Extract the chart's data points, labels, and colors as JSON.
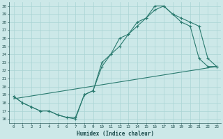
{
  "xlabel": "Humidex (Indice chaleur)",
  "bg_color": "#cce8e8",
  "grid_color": "#aad4d4",
  "line_color": "#2a7a6f",
  "xlim": [
    -0.5,
    23.5
  ],
  "ylim": [
    15.5,
    30.5
  ],
  "xticks": [
    0,
    1,
    2,
    3,
    4,
    5,
    6,
    7,
    8,
    9,
    10,
    11,
    12,
    13,
    14,
    15,
    16,
    17,
    18,
    19,
    20,
    21,
    22,
    23
  ],
  "yticks": [
    16,
    17,
    18,
    19,
    20,
    21,
    22,
    23,
    24,
    25,
    26,
    27,
    28,
    29,
    30
  ],
  "line1_x": [
    0,
    1,
    2,
    3,
    4,
    5,
    6,
    7,
    8,
    9,
    10,
    11,
    12,
    13,
    14,
    15,
    16,
    17,
    18,
    19,
    20,
    21,
    22,
    23
  ],
  "line1_y": [
    18.8,
    18.0,
    17.5,
    17.0,
    17.0,
    16.5,
    16.2,
    16.0,
    19.0,
    19.5,
    22.5,
    24.0,
    26.0,
    26.5,
    28.0,
    28.5,
    30.0,
    30.0,
    29.0,
    28.0,
    27.5,
    23.5,
    22.5,
    22.5
  ],
  "line2_x": [
    0,
    1,
    2,
    3,
    4,
    5,
    6,
    7,
    8,
    9,
    10,
    11,
    12,
    13,
    14,
    15,
    16,
    17,
    18,
    19,
    20,
    21,
    22,
    23
  ],
  "line2_y": [
    18.8,
    18.0,
    17.5,
    17.0,
    17.0,
    16.5,
    16.2,
    16.2,
    19.0,
    19.5,
    23.0,
    24.0,
    25.0,
    26.5,
    27.5,
    28.5,
    29.5,
    30.0,
    29.0,
    28.5,
    28.0,
    27.5,
    23.5,
    22.5
  ],
  "line3_x": [
    0,
    23
  ],
  "line3_y": [
    18.5,
    22.5
  ]
}
